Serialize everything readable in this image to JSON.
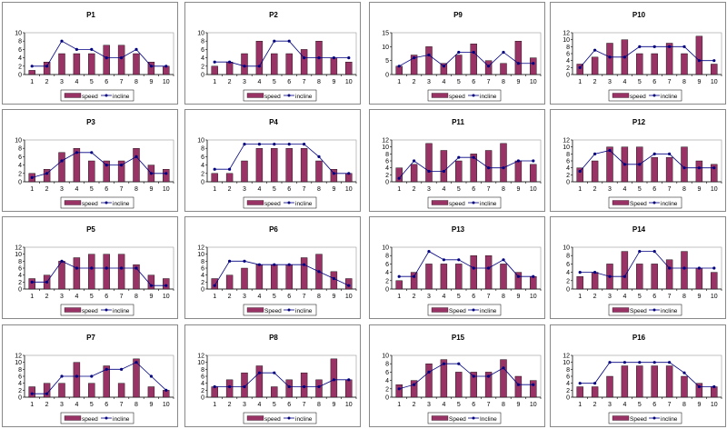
{
  "chart_data": [
    {
      "type": "bar+line",
      "title": "P1",
      "x": [
        1,
        2,
        3,
        4,
        5,
        6,
        7,
        8,
        9,
        10
      ],
      "ylim": [
        0,
        10
      ],
      "ystep": 2,
      "legend": [
        "speed",
        "incline"
      ],
      "series": [
        {
          "name": "speed",
          "values": [
            1,
            3,
            5,
            5,
            5,
            7,
            7,
            5,
            3,
            2
          ]
        },
        {
          "name": "incline",
          "values": [
            2,
            2,
            8,
            6,
            6,
            4,
            4,
            6,
            2,
            2
          ]
        }
      ]
    },
    {
      "type": "bar+line",
      "title": "P2",
      "x": [
        1,
        2,
        3,
        4,
        5,
        6,
        7,
        8,
        9,
        10
      ],
      "ylim": [
        0,
        10
      ],
      "ystep": 2,
      "legend": [
        "speed",
        "incline"
      ],
      "series": [
        {
          "name": "speed",
          "values": [
            2,
            3,
            5,
            8,
            5,
            5,
            6,
            8,
            4,
            3
          ]
        },
        {
          "name": "incline",
          "values": [
            3,
            3,
            2,
            2,
            8,
            8,
            4,
            4,
            4,
            4
          ]
        }
      ]
    },
    {
      "type": "bar+line",
      "title": "P9",
      "x": [
        1,
        2,
        3,
        4,
        5,
        6,
        7,
        8,
        9,
        10
      ],
      "ylim": [
        0,
        15
      ],
      "ystep": 5,
      "legend": [
        "speed",
        "incline"
      ],
      "series": [
        {
          "name": "speed",
          "values": [
            3,
            7,
            10,
            4,
            7,
            11,
            5,
            4,
            12,
            6
          ]
        },
        {
          "name": "incline",
          "values": [
            3,
            6,
            7,
            3,
            8,
            8,
            3,
            8,
            4,
            4
          ]
        }
      ]
    },
    {
      "type": "bar+line",
      "title": "P10",
      "x": [
        1,
        2,
        3,
        4,
        5,
        6,
        7,
        8,
        9,
        10
      ],
      "ylim": [
        0,
        12
      ],
      "ystep": 2,
      "legend": [
        "speed",
        "incline"
      ],
      "series": [
        {
          "name": "speed",
          "values": [
            3,
            5,
            9,
            10,
            6,
            6,
            9,
            6,
            11,
            3
          ]
        },
        {
          "name": "incline",
          "values": [
            2,
            7,
            5,
            5,
            8,
            8,
            8,
            8,
            4,
            4
          ]
        }
      ]
    },
    {
      "type": "bar+line",
      "title": "P3",
      "x": [
        1,
        2,
        3,
        4,
        5,
        6,
        7,
        8,
        9,
        10
      ],
      "ylim": [
        0,
        10
      ],
      "ystep": 2,
      "legend": [
        "speed",
        "incline"
      ],
      "series": [
        {
          "name": "speed",
          "values": [
            2,
            3,
            7,
            8,
            5,
            5,
            5,
            8,
            4,
            3
          ]
        },
        {
          "name": "incline",
          "values": [
            1,
            2,
            5,
            7,
            7,
            4,
            4,
            6,
            2,
            2
          ]
        }
      ]
    },
    {
      "type": "bar+line",
      "title": "P4",
      "x": [
        1,
        2,
        3,
        4,
        5,
        6,
        7,
        8,
        9,
        10
      ],
      "ylim": [
        0,
        10
      ],
      "ystep": 2,
      "legend": [
        "speed",
        "incline"
      ],
      "series": [
        {
          "name": "speed",
          "values": [
            2,
            2,
            5,
            8,
            8,
            8,
            8,
            5,
            3,
            2
          ]
        },
        {
          "name": "incline",
          "values": [
            3,
            3,
            9,
            9,
            9,
            9,
            9,
            6,
            2,
            2
          ]
        }
      ]
    },
    {
      "type": "bar+line",
      "title": "P11",
      "x": [
        1,
        2,
        3,
        4,
        5,
        6,
        7,
        8,
        9,
        10
      ],
      "ylim": [
        0,
        12
      ],
      "ystep": 2,
      "legend": [
        "speed",
        "incline"
      ],
      "series": [
        {
          "name": "speed",
          "values": [
            4,
            5,
            11,
            9,
            6,
            8,
            9,
            11,
            6,
            5
          ]
        },
        {
          "name": "incline",
          "values": [
            1,
            6,
            3,
            3,
            7,
            7,
            4,
            4,
            6,
            6
          ]
        }
      ]
    },
    {
      "type": "bar+line",
      "title": "P12",
      "x": [
        1,
        2,
        3,
        4,
        5,
        6,
        7,
        8,
        9,
        10
      ],
      "ylim": [
        0,
        12
      ],
      "ystep": 2,
      "legend": [
        "Speed",
        "incline"
      ],
      "series": [
        {
          "name": "Speed",
          "values": [
            4,
            6,
            10,
            10,
            10,
            7,
            7,
            10,
            6,
            5
          ]
        },
        {
          "name": "incline",
          "values": [
            3,
            8,
            9,
            5,
            5,
            8,
            8,
            4,
            4,
            4
          ]
        }
      ]
    },
    {
      "type": "bar+line",
      "title": "P5",
      "x": [
        1,
        2,
        3,
        4,
        5,
        6,
        7,
        8,
        9,
        10
      ],
      "ylim": [
        0,
        12
      ],
      "ystep": 2,
      "legend": [
        "speed",
        "incline"
      ],
      "series": [
        {
          "name": "speed",
          "values": [
            3,
            4,
            8,
            9,
            10,
            10,
            10,
            7,
            4,
            3
          ]
        },
        {
          "name": "incline",
          "values": [
            2,
            2,
            8,
            6,
            6,
            6,
            6,
            6,
            1,
            1
          ]
        }
      ]
    },
    {
      "type": "bar+line",
      "title": "P6",
      "x": [
        1,
        2,
        3,
        4,
        5,
        6,
        7,
        8,
        9,
        10
      ],
      "ylim": [
        0,
        12
      ],
      "ystep": 2,
      "legend": [
        "Speed",
        "incline"
      ],
      "series": [
        {
          "name": "Speed",
          "values": [
            3,
            4,
            6,
            7,
            7,
            7,
            9,
            10,
            5,
            3
          ]
        },
        {
          "name": "incline",
          "values": [
            1,
            8,
            8,
            7,
            7,
            7,
            7,
            5,
            3,
            1
          ]
        }
      ]
    },
    {
      "type": "bar+line",
      "title": "P13",
      "x": [
        1,
        2,
        3,
        4,
        5,
        6,
        7,
        8,
        9,
        10
      ],
      "ylim": [
        0,
        10
      ],
      "ystep": 2,
      "legend": [
        "Speed",
        "incline"
      ],
      "series": [
        {
          "name": "Speed",
          "values": [
            2,
            4,
            6,
            6,
            6,
            8,
            8,
            6,
            4,
            3
          ]
        },
        {
          "name": "incline",
          "values": [
            3,
            3,
            9,
            7,
            7,
            5,
            5,
            7,
            3,
            3
          ]
        }
      ]
    },
    {
      "type": "bar+line",
      "title": "P14",
      "x": [
        1,
        2,
        3,
        4,
        5,
        6,
        7,
        8,
        9,
        10
      ],
      "ylim": [
        0,
        10
      ],
      "ystep": 2,
      "legend": [
        "Speed",
        "incline"
      ],
      "series": [
        {
          "name": "Speed",
          "values": [
            3,
            4,
            6,
            9,
            6,
            6,
            7,
            9,
            5,
            4
          ]
        },
        {
          "name": "incline",
          "values": [
            4,
            4,
            3,
            3,
            9,
            9,
            5,
            5,
            5,
            5
          ]
        }
      ]
    },
    {
      "type": "bar+line",
      "title": "P7",
      "x": [
        1,
        2,
        3,
        4,
        5,
        6,
        7,
        8,
        9,
        10
      ],
      "ylim": [
        0,
        12
      ],
      "ystep": 2,
      "legend": [
        "speed",
        "incline"
      ],
      "series": [
        {
          "name": "speed",
          "values": [
            3,
            4,
            4,
            10,
            4,
            9,
            4,
            11,
            3,
            2
          ]
        },
        {
          "name": "incline",
          "values": [
            1,
            1,
            6,
            6,
            6,
            8,
            8,
            10,
            6,
            2
          ]
        }
      ]
    },
    {
      "type": "bar+line",
      "title": "P8",
      "x": [
        1,
        2,
        3,
        4,
        5,
        6,
        7,
        8,
        9,
        10
      ],
      "ylim": [
        0,
        12
      ],
      "ystep": 2,
      "legend": [
        "speed",
        "incline"
      ],
      "series": [
        {
          "name": "speed",
          "values": [
            3,
            5,
            7,
            9,
            3,
            5,
            7,
            5,
            11,
            5
          ]
        },
        {
          "name": "incline",
          "values": [
            3,
            3,
            3,
            7,
            7,
            3,
            3,
            3,
            5,
            5
          ]
        }
      ]
    },
    {
      "type": "bar+line",
      "title": "P15",
      "x": [
        1,
        2,
        3,
        4,
        5,
        6,
        7,
        8,
        9,
        10
      ],
      "ylim": [
        0,
        10
      ],
      "ystep": 2,
      "legend": [
        "Speed",
        "Incline"
      ],
      "series": [
        {
          "name": "Speed",
          "values": [
            3,
            4,
            8,
            9,
            6,
            6,
            6,
            9,
            5,
            4
          ]
        },
        {
          "name": "Incline",
          "values": [
            2,
            3,
            6,
            8,
            8,
            5,
            5,
            7,
            3,
            3
          ]
        }
      ]
    },
    {
      "type": "bar+line",
      "title": "P16",
      "x": [
        1,
        2,
        3,
        4,
        5,
        6,
        7,
        8,
        9,
        10
      ],
      "ylim": [
        0,
        12
      ],
      "ystep": 2,
      "legend": [
        "Speed",
        "incline"
      ],
      "series": [
        {
          "name": "Speed",
          "values": [
            3,
            3,
            6,
            9,
            9,
            9,
            9,
            6,
            4,
            3
          ]
        },
        {
          "name": "incline",
          "values": [
            4,
            4,
            10,
            10,
            10,
            10,
            10,
            7,
            3,
            3
          ]
        }
      ]
    }
  ],
  "colors": {
    "bar": "#993366",
    "line": "#000080",
    "grid": "#808080"
  }
}
